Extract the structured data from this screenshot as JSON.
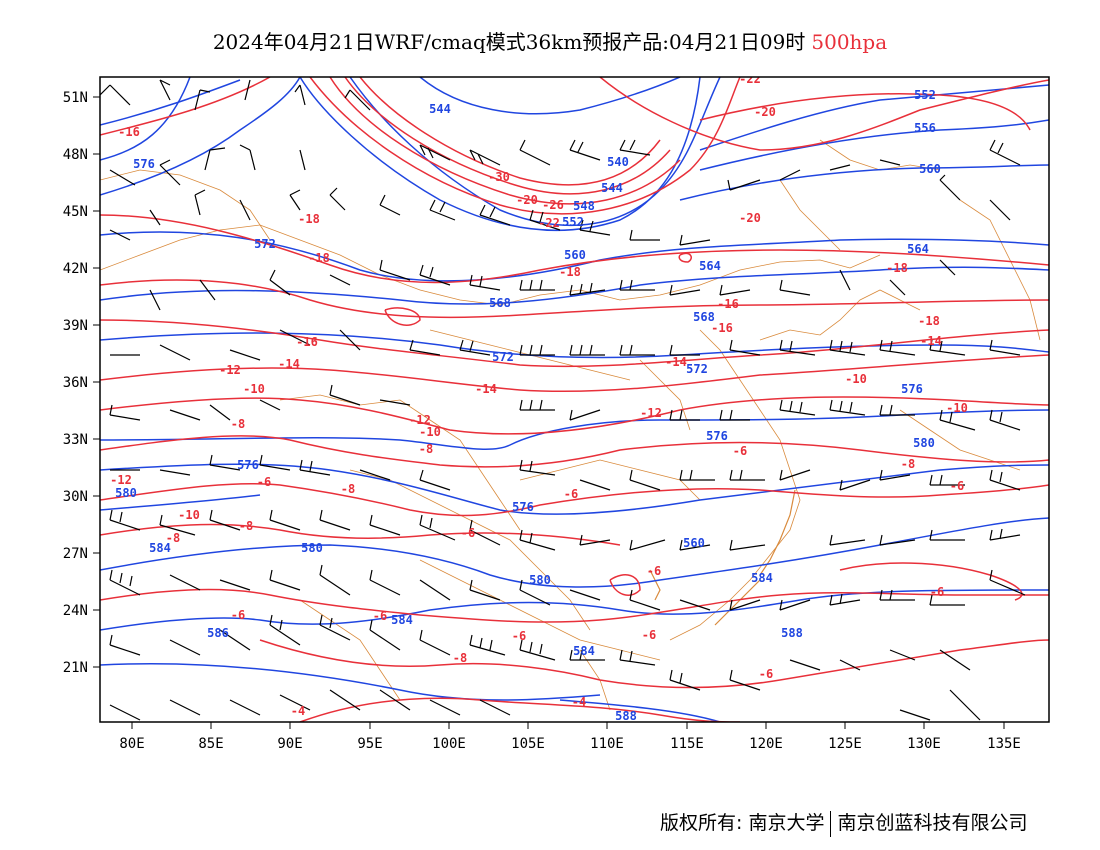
{
  "title": {
    "main": "2024年04月21日WRF/cmaq模式36km预报产品:04月21日09时",
    "level": "500hpa"
  },
  "colors": {
    "height": "#2046e0",
    "temperature": "#e8303a",
    "border": "#d98a3c",
    "wind": "#000000"
  },
  "axes": {
    "lon_labels": [
      "80E",
      "85E",
      "90E",
      "95E",
      "100E",
      "105E",
      "110E",
      "115E",
      "120E",
      "125E",
      "130E",
      "135E"
    ],
    "lat_labels": [
      "51N",
      "48N",
      "45N",
      "42N",
      "39N",
      "36N",
      "33N",
      "30N",
      "27N",
      "24N",
      "21N"
    ]
  },
  "height_labels": [
    "544",
    "552",
    "556",
    "540",
    "544",
    "548",
    "552",
    "560",
    "576",
    "572",
    "564",
    "568",
    "572",
    "560",
    "572",
    "576",
    "576",
    "580",
    "576",
    "580",
    "576",
    "584",
    "580",
    "580",
    "584",
    "588",
    "584",
    "584",
    "586",
    "588",
    "564",
    "560",
    "568"
  ],
  "temp_labels": [
    "-16",
    "-20",
    "-22",
    "-18",
    "-30",
    "-20",
    "-26",
    "-22",
    "-18",
    "-18",
    "-20",
    "-16",
    "-18",
    "-16",
    "-14",
    "-16",
    "-18",
    "-14",
    "-14",
    "-12",
    "-10",
    "-14",
    "-12",
    "-10",
    "-12",
    "-10",
    "-8",
    "-8",
    "-6",
    "-8",
    "-6",
    "-6",
    "-8",
    "-10",
    "-8",
    "-6",
    "-8",
    "-10",
    "-6",
    "-12",
    "-6",
    "-6",
    "-6",
    "-8",
    "-6",
    "-6",
    "-6",
    "-4",
    "-4",
    "-6"
  ],
  "footer": {
    "left": "版权所有: 南京大学",
    "right": "南京创蓝科技有限公司"
  }
}
